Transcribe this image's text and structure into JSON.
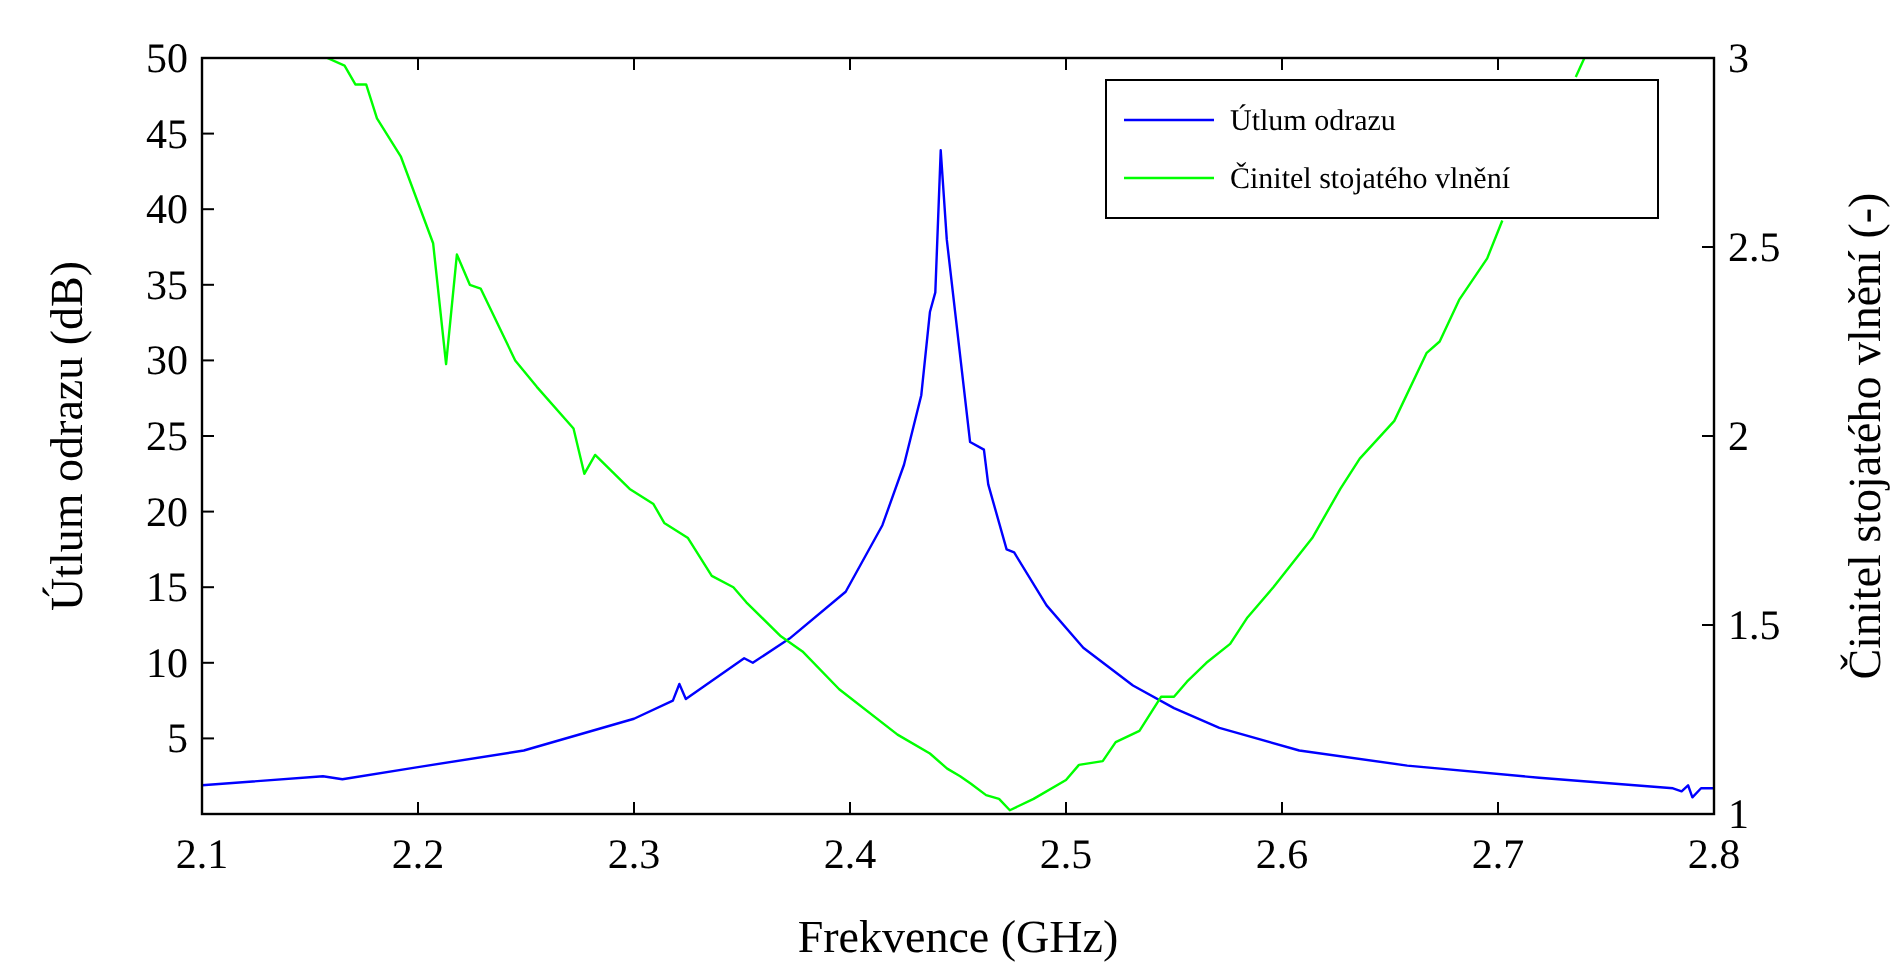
{
  "chart_data": {
    "type": "line",
    "xlabel": "Frekvence (GHz)",
    "ylabel": "Útlum odrazu (dB)",
    "y2label": "Činitel stojatého vlnění (-)",
    "xlim": [
      2.1,
      2.8
    ],
    "xticks": [
      2.1,
      2.2,
      2.3,
      2.4,
      2.5,
      2.6,
      2.7,
      2.8
    ],
    "ylim": [
      0,
      50
    ],
    "yticks": [
      5,
      10,
      15,
      20,
      25,
      30,
      35,
      40,
      45,
      50
    ],
    "y2lim": [
      1,
      3
    ],
    "y2ticks": [
      1,
      1.5,
      2,
      2.5,
      3
    ],
    "legend": "top right",
    "grid": false,
    "marker": "none",
    "line_style": "solid",
    "series": [
      {
        "name": "Útlum odrazu",
        "color": "#0000ff",
        "x": [
          2.1,
          2.156,
          2.165,
          2.2,
          2.249,
          2.3,
          2.318,
          2.321,
          2.324,
          2.351,
          2.355,
          2.372,
          2.398,
          2.415,
          2.425,
          2.433,
          2.437,
          2.4395,
          2.442,
          2.4448,
          2.4556,
          2.462,
          2.464,
          2.4725,
          2.476,
          2.491,
          2.508,
          2.531,
          2.55,
          2.571,
          2.608,
          2.658,
          2.719,
          2.781,
          2.785,
          2.788,
          2.79,
          2.794,
          2.8
        ],
        "values": [
          1.9,
          2.5,
          2.3,
          3.1,
          4.2,
          6.3,
          7.5,
          8.6,
          7.6,
          10.3,
          10.0,
          11.6,
          14.7,
          19.1,
          23.1,
          27.7,
          33.2,
          34.5,
          43.9,
          38.0,
          24.6,
          24.1,
          21.8,
          17.5,
          17.3,
          13.8,
          11.0,
          8.5,
          7.0,
          5.7,
          4.2,
          3.2,
          2.4,
          1.7,
          1.5,
          1.9,
          1.1,
          1.7,
          1.7
        ]
      },
      {
        "name": "Činitel stojatého vlnění",
        "color": "#00ff00",
        "axis": "y2",
        "x": [
          2.158,
          2.166,
          2.171,
          2.176,
          2.181,
          2.192,
          2.207,
          2.213,
          2.218,
          2.224,
          2.229,
          2.245,
          2.255,
          2.272,
          2.277,
          2.282,
          2.298,
          2.309,
          2.314,
          2.325,
          2.336,
          2.346,
          2.352,
          2.368,
          2.378,
          2.395,
          2.422,
          2.437,
          2.445,
          2.451,
          2.456,
          2.463,
          2.469,
          2.474,
          2.485,
          2.5,
          2.506,
          2.517,
          2.523,
          2.534,
          2.544,
          2.55,
          2.556,
          2.565,
          2.576,
          2.584,
          2.596,
          2.614,
          2.627,
          2.636,
          2.652,
          2.667,
          2.673,
          2.682,
          2.695,
          2.702,
          2.713,
          2.726,
          2.736,
          2.74
        ],
        "values": [
          3.0,
          2.98,
          2.93,
          2.93,
          2.84,
          2.74,
          2.51,
          2.19,
          2.48,
          2.4,
          2.39,
          2.2,
          2.13,
          2.02,
          1.9,
          1.95,
          1.86,
          1.82,
          1.77,
          1.73,
          1.63,
          1.6,
          1.56,
          1.47,
          1.43,
          1.33,
          1.21,
          1.16,
          1.12,
          1.1,
          1.08,
          1.05,
          1.04,
          1.01,
          1.04,
          1.09,
          1.13,
          1.14,
          1.19,
          1.22,
          1.31,
          1.31,
          1.35,
          1.4,
          1.45,
          1.52,
          1.6,
          1.73,
          1.86,
          1.94,
          2.04,
          2.22,
          2.25,
          2.36,
          2.47,
          2.57,
          null,
          null,
          2.95,
          3.0
        ]
      }
    ]
  }
}
